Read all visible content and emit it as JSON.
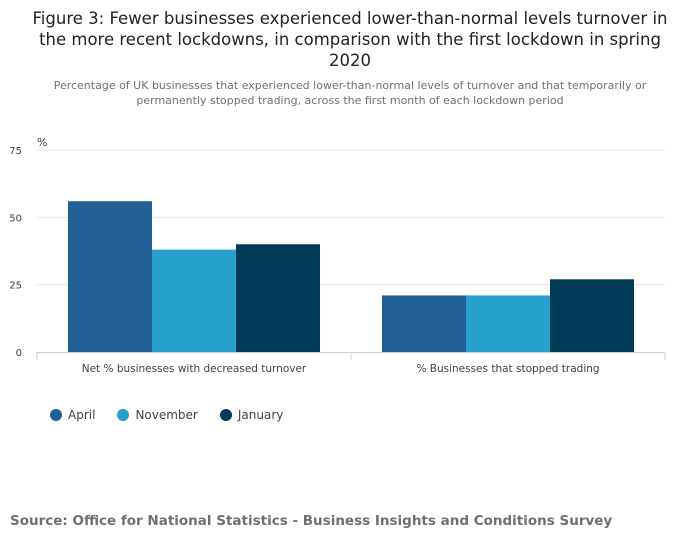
{
  "chart_data": {
    "type": "bar",
    "title": "Figure 3: Fewer businesses experienced lower-than-normal levels turnover in the more recent lockdowns, in comparison with the first lockdown in spring 2020",
    "subtitle": "Percentage of UK businesses that experienced lower-than-normal levels of turnover and that temporarily or permanently stopped trading, across the first month of each lockdown period",
    "ylabel": "%",
    "xlabel": "",
    "ylim": [
      0,
      75
    ],
    "yticks": [
      0,
      25,
      50,
      75
    ],
    "grid": true,
    "legend_position": "bottom-left",
    "categories": [
      "Net % businesses with decreased turnover",
      "% Businesses that stopped trading"
    ],
    "series": [
      {
        "name": "April",
        "color": "#206095",
        "values": [
          56,
          21
        ]
      },
      {
        "name": "November",
        "color": "#27a0cc",
        "values": [
          38,
          21
        ]
      },
      {
        "name": "January",
        "color": "#003c57",
        "values": [
          40,
          27
        ]
      }
    ]
  },
  "source": "Source: Office for National Statistics - Business Insights and Conditions Survey"
}
